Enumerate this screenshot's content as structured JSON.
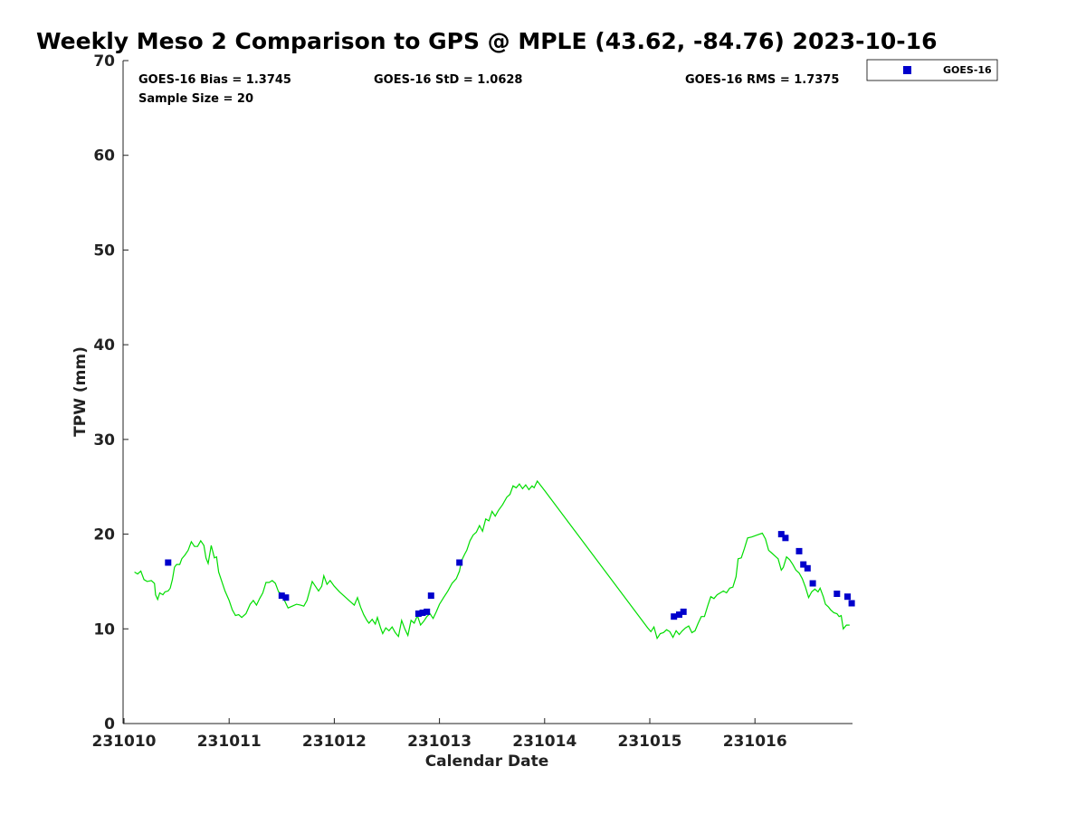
{
  "chart_data": {
    "type": "line",
    "title": "Weekly Meso 2 Comparison to GPS @ MPLE (43.62, -84.76) 2023-10-16",
    "xlabel": "Calendar Date",
    "ylabel": "TPW (mm)",
    "xlim": [
      0,
      6.95
    ],
    "ylim": [
      0,
      70
    ],
    "x_ticks": [
      {
        "value": 0,
        "label": "231010"
      },
      {
        "value": 1,
        "label": "231011"
      },
      {
        "value": 2,
        "label": "231012"
      },
      {
        "value": 3,
        "label": "231013"
      },
      {
        "value": 4,
        "label": "231014"
      },
      {
        "value": 5,
        "label": "231015"
      },
      {
        "value": 6,
        "label": "231016"
      }
    ],
    "y_ticks": [
      {
        "value": 0,
        "label": "0"
      },
      {
        "value": 10,
        "label": "10"
      },
      {
        "value": 20,
        "label": "20"
      },
      {
        "value": 30,
        "label": "30"
      },
      {
        "value": 40,
        "label": "40"
      },
      {
        "value": 50,
        "label": "50"
      },
      {
        "value": 60,
        "label": "60"
      },
      {
        "value": 70,
        "label": "70"
      }
    ],
    "stats": {
      "bias": "GOES-16 Bias = 1.3745",
      "std": "GOES-16 StD = 1.0628",
      "rms": "GOES-16 RMS = 1.7375",
      "sample_size": "Sample Size = 20"
    },
    "legend": {
      "position": "top-right",
      "entries": [
        {
          "label": "GOES-16",
          "marker": "square",
          "color": "#0000cc"
        }
      ]
    },
    "series": [
      {
        "name": "GPS",
        "style": "line",
        "color": "#00dd00",
        "points": [
          [
            0.1,
            16.0
          ],
          [
            0.13,
            15.8
          ],
          [
            0.16,
            16.1
          ],
          [
            0.19,
            15.2
          ],
          [
            0.22,
            15.0
          ],
          [
            0.26,
            15.1
          ],
          [
            0.29,
            14.8
          ],
          [
            0.3,
            13.6
          ],
          [
            0.32,
            13.1
          ],
          [
            0.34,
            13.8
          ],
          [
            0.37,
            13.6
          ],
          [
            0.39,
            13.9
          ],
          [
            0.42,
            14.0
          ],
          [
            0.44,
            14.3
          ],
          [
            0.46,
            15.2
          ],
          [
            0.48,
            16.5
          ],
          [
            0.5,
            16.8
          ],
          [
            0.53,
            16.8
          ],
          [
            0.55,
            17.4
          ],
          [
            0.58,
            17.8
          ],
          [
            0.61,
            18.3
          ],
          [
            0.64,
            19.2
          ],
          [
            0.67,
            18.7
          ],
          [
            0.7,
            18.7
          ],
          [
            0.73,
            19.3
          ],
          [
            0.76,
            18.8
          ],
          [
            0.78,
            17.5
          ],
          [
            0.8,
            16.9
          ],
          [
            0.83,
            18.8
          ],
          [
            0.86,
            17.5
          ],
          [
            0.88,
            17.6
          ],
          [
            0.9,
            16.0
          ],
          [
            0.93,
            15.0
          ],
          [
            0.96,
            14.0
          ],
          [
            1.0,
            13.0
          ],
          [
            1.03,
            12.0
          ],
          [
            1.06,
            11.4
          ],
          [
            1.09,
            11.5
          ],
          [
            1.12,
            11.2
          ],
          [
            1.16,
            11.6
          ],
          [
            1.2,
            12.6
          ],
          [
            1.23,
            13.0
          ],
          [
            1.26,
            12.5
          ],
          [
            1.29,
            13.2
          ],
          [
            1.32,
            13.8
          ],
          [
            1.35,
            14.9
          ],
          [
            1.38,
            14.9
          ],
          [
            1.41,
            15.1
          ],
          [
            1.44,
            14.8
          ],
          [
            1.47,
            13.9
          ],
          [
            1.5,
            13.7
          ],
          [
            1.53,
            12.9
          ],
          [
            1.56,
            12.2
          ],
          [
            1.6,
            12.4
          ],
          [
            1.64,
            12.6
          ],
          [
            1.68,
            12.5
          ],
          [
            1.71,
            12.4
          ],
          [
            1.74,
            13.0
          ],
          [
            1.77,
            14.2
          ],
          [
            1.79,
            15.0
          ],
          [
            1.82,
            14.5
          ],
          [
            1.85,
            14.0
          ],
          [
            1.88,
            14.5
          ],
          [
            1.9,
            15.6
          ],
          [
            1.93,
            14.7
          ],
          [
            1.96,
            15.1
          ],
          [
            2.0,
            14.5
          ],
          [
            2.05,
            13.9
          ],
          [
            2.1,
            13.4
          ],
          [
            2.15,
            12.9
          ],
          [
            2.19,
            12.5
          ],
          [
            2.22,
            13.3
          ],
          [
            2.25,
            12.3
          ],
          [
            2.28,
            11.5
          ],
          [
            2.31,
            10.9
          ],
          [
            2.33,
            10.6
          ],
          [
            2.36,
            11.0
          ],
          [
            2.39,
            10.5
          ],
          [
            2.41,
            11.2
          ],
          [
            2.44,
            10.1
          ],
          [
            2.46,
            9.5
          ],
          [
            2.49,
            10.1
          ],
          [
            2.52,
            9.8
          ],
          [
            2.55,
            10.2
          ],
          [
            2.58,
            9.6
          ],
          [
            2.61,
            9.2
          ],
          [
            2.64,
            10.9
          ],
          [
            2.67,
            10.0
          ],
          [
            2.7,
            9.3
          ],
          [
            2.73,
            10.9
          ],
          [
            2.76,
            10.6
          ],
          [
            2.79,
            11.4
          ],
          [
            2.82,
            10.4
          ],
          [
            2.85,
            10.8
          ],
          [
            2.88,
            11.3
          ],
          [
            2.91,
            11.6
          ],
          [
            2.94,
            11.1
          ],
          [
            2.97,
            11.8
          ],
          [
            3.0,
            12.6
          ],
          [
            3.04,
            13.3
          ],
          [
            3.08,
            14.0
          ],
          [
            3.12,
            14.8
          ],
          [
            3.16,
            15.3
          ],
          [
            3.19,
            16.1
          ],
          [
            3.21,
            17.2
          ],
          [
            3.24,
            17.9
          ],
          [
            3.26,
            18.3
          ],
          [
            3.29,
            19.3
          ],
          [
            3.32,
            19.9
          ],
          [
            3.35,
            20.2
          ],
          [
            3.38,
            20.9
          ],
          [
            3.41,
            20.3
          ],
          [
            3.44,
            21.6
          ],
          [
            3.47,
            21.4
          ],
          [
            3.5,
            22.4
          ],
          [
            3.53,
            21.9
          ],
          [
            3.56,
            22.5
          ],
          [
            3.6,
            23.1
          ],
          [
            3.64,
            23.9
          ],
          [
            3.67,
            24.2
          ],
          [
            3.7,
            25.1
          ],
          [
            3.73,
            24.9
          ],
          [
            3.76,
            25.3
          ],
          [
            3.79,
            24.8
          ],
          [
            3.82,
            25.2
          ],
          [
            3.85,
            24.7
          ],
          [
            3.88,
            25.1
          ],
          [
            3.9,
            24.9
          ],
          [
            3.93,
            25.6
          ],
          [
            4.0,
            24.6
          ],
          [
            4.98,
            10.1
          ],
          [
            5.01,
            9.7
          ],
          [
            5.04,
            10.2
          ],
          [
            5.07,
            9.0
          ],
          [
            5.1,
            9.5
          ],
          [
            5.13,
            9.6
          ],
          [
            5.16,
            9.9
          ],
          [
            5.19,
            9.7
          ],
          [
            5.22,
            9.1
          ],
          [
            5.25,
            9.8
          ],
          [
            5.28,
            9.4
          ],
          [
            5.31,
            9.8
          ],
          [
            5.34,
            10.1
          ],
          [
            5.37,
            10.3
          ],
          [
            5.4,
            9.6
          ],
          [
            5.43,
            9.8
          ],
          [
            5.46,
            10.6
          ],
          [
            5.49,
            11.3
          ],
          [
            5.52,
            11.3
          ],
          [
            5.55,
            12.4
          ],
          [
            5.58,
            13.4
          ],
          [
            5.61,
            13.2
          ],
          [
            5.64,
            13.6
          ],
          [
            5.67,
            13.8
          ],
          [
            5.7,
            14.0
          ],
          [
            5.73,
            13.8
          ],
          [
            5.76,
            14.3
          ],
          [
            5.79,
            14.4
          ],
          [
            5.82,
            15.5
          ],
          [
            5.84,
            17.4
          ],
          [
            5.87,
            17.5
          ],
          [
            5.9,
            18.5
          ],
          [
            5.93,
            19.6
          ],
          [
            5.97,
            19.7
          ],
          [
            6.02,
            19.9
          ],
          [
            6.07,
            20.1
          ],
          [
            6.1,
            19.5
          ],
          [
            6.13,
            18.3
          ],
          [
            6.16,
            18.0
          ],
          [
            6.19,
            17.7
          ],
          [
            6.22,
            17.4
          ],
          [
            6.25,
            16.2
          ],
          [
            6.27,
            16.5
          ],
          [
            6.3,
            17.6
          ],
          [
            6.33,
            17.3
          ],
          [
            6.36,
            16.8
          ],
          [
            6.39,
            16.2
          ],
          [
            6.42,
            15.9
          ],
          [
            6.45,
            15.3
          ],
          [
            6.48,
            14.4
          ],
          [
            6.51,
            13.3
          ],
          [
            6.54,
            13.9
          ],
          [
            6.57,
            14.2
          ],
          [
            6.6,
            13.9
          ],
          [
            6.62,
            14.3
          ],
          [
            6.65,
            13.4
          ],
          [
            6.67,
            12.6
          ],
          [
            6.7,
            12.3
          ],
          [
            6.72,
            12.0
          ],
          [
            6.75,
            11.7
          ],
          [
            6.78,
            11.6
          ],
          [
            6.8,
            11.3
          ],
          [
            6.82,
            11.4
          ],
          [
            6.84,
            10.0
          ],
          [
            6.87,
            10.4
          ],
          [
            6.9,
            10.4
          ]
        ]
      },
      {
        "name": "GOES-16",
        "style": "marker",
        "color": "#0000cc",
        "points": [
          [
            0.42,
            17.0
          ],
          [
            1.5,
            13.5
          ],
          [
            1.54,
            13.3
          ],
          [
            2.8,
            11.6
          ],
          [
            2.84,
            11.7
          ],
          [
            2.88,
            11.8
          ],
          [
            2.92,
            13.5
          ],
          [
            3.19,
            17.0
          ],
          [
            5.23,
            11.3
          ],
          [
            5.28,
            11.5
          ],
          [
            5.32,
            11.8
          ],
          [
            6.25,
            20.0
          ],
          [
            6.29,
            19.6
          ],
          [
            6.42,
            18.2
          ],
          [
            6.46,
            16.8
          ],
          [
            6.5,
            16.4
          ],
          [
            6.55,
            14.8
          ],
          [
            6.78,
            13.7
          ],
          [
            6.88,
            13.4
          ],
          [
            6.92,
            12.7
          ]
        ]
      }
    ]
  }
}
